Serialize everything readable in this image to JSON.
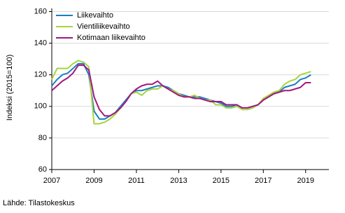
{
  "chart_data": {
    "type": "line",
    "y_label": "Indeksi (2015=100)",
    "source": "Lähde: Tilastokeskus",
    "x": [
      2007,
      2007.25,
      2007.5,
      2007.75,
      2008,
      2008.25,
      2008.5,
      2008.75,
      2009,
      2009.25,
      2009.5,
      2009.75,
      2010,
      2010.25,
      2010.5,
      2010.75,
      2011,
      2011.25,
      2011.5,
      2011.75,
      2012,
      2012.25,
      2012.5,
      2012.75,
      2013,
      2013.25,
      2013.5,
      2013.75,
      2014,
      2014.25,
      2014.5,
      2014.75,
      2015,
      2015.25,
      2015.5,
      2015.75,
      2016,
      2016.25,
      2016.5,
      2016.75,
      2017,
      2017.25,
      2017.5,
      2017.75,
      2018,
      2018.25,
      2018.5,
      2018.75,
      2019,
      2019.25
    ],
    "series": [
      {
        "name": "Liikevaihto",
        "color": "#1a7fc4",
        "values": [
          113,
          117,
          120,
          121,
          124,
          127,
          127,
          120,
          97,
          92,
          92,
          94,
          96,
          100,
          104,
          108,
          110,
          110,
          111,
          112,
          113,
          113,
          112,
          110,
          108,
          107,
          106,
          106,
          106,
          105,
          104,
          103,
          102,
          100,
          100,
          101,
          99,
          99,
          100,
          101,
          104,
          106,
          108,
          109,
          112,
          113,
          114,
          117,
          118,
          120
        ]
      },
      {
        "name": "Vientiliikevaihto",
        "color": "#a8d43c",
        "values": [
          117,
          124,
          124,
          124,
          127,
          129,
          128,
          125,
          89,
          89,
          90,
          92,
          95,
          99,
          103,
          108,
          109,
          107,
          110,
          111,
          111,
          113,
          111,
          110,
          108,
          106,
          106,
          107,
          105,
          104,
          104,
          101,
          101,
          99,
          99,
          100,
          98,
          98,
          99,
          101,
          105,
          107,
          109,
          110,
          114,
          116,
          117,
          120,
          121,
          122
        ]
      },
      {
        "name": "Kotimaan liikevaihto",
        "color": "#a3177f",
        "values": [
          110,
          113,
          116,
          118,
          121,
          126,
          126,
          123,
          106,
          98,
          94,
          94,
          96,
          99,
          103,
          108,
          111,
          113,
          114,
          114,
          116,
          113,
          111,
          109,
          107,
          106,
          106,
          105,
          105,
          104,
          103,
          103,
          103,
          101,
          101,
          101,
          99,
          99,
          100,
          101,
          104,
          106,
          108,
          109,
          110,
          110,
          111,
          112,
          115,
          115
        ]
      }
    ],
    "xlim": [
      2007,
      2020.1
    ],
    "xticks": [
      2007,
      2009,
      2011,
      2013,
      2015,
      2017,
      2019
    ],
    "ylim": [
      60,
      162
    ],
    "yticks": [
      60,
      80,
      100,
      120,
      140,
      160
    ],
    "grid": true,
    "legend": "upper-left"
  }
}
